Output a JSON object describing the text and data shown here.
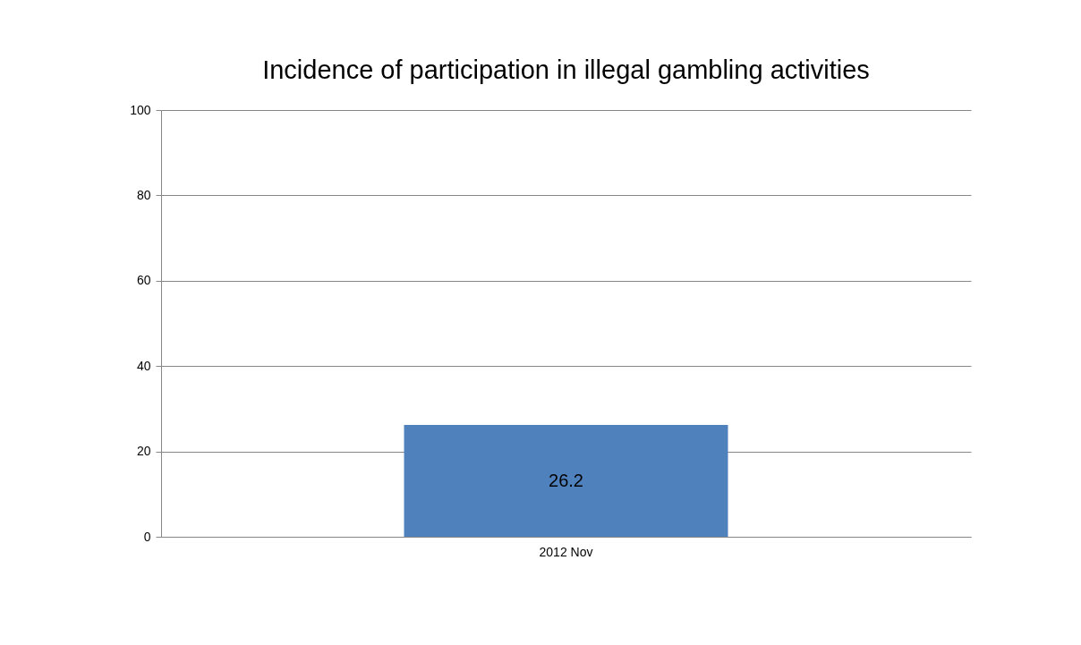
{
  "chart_data": {
    "type": "bar",
    "title": "Incidence of participation in illegal gambling activities",
    "categories": [
      "2012 Nov"
    ],
    "values": [
      26.2
    ],
    "color": "#4f81bd",
    "ylim": [
      0,
      100
    ],
    "yticks": [
      0,
      20,
      40,
      60,
      80,
      100
    ],
    "grid": "y",
    "data_labels": true
  }
}
